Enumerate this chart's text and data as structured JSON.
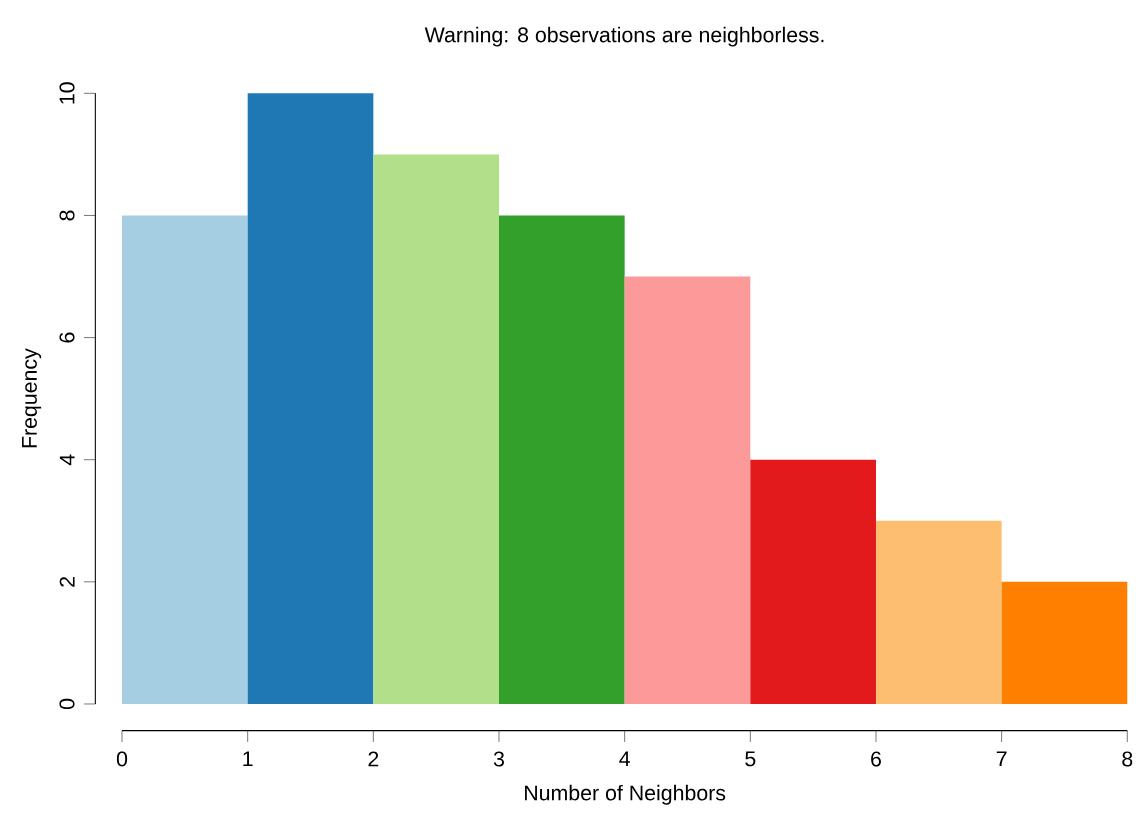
{
  "chart_data": {
    "type": "histogram",
    "title": "Warning: 8 observations are neighborless.",
    "xlabel": "Number of Neighbors",
    "ylabel": "Frequency",
    "bins": [
      0,
      1,
      2,
      3,
      4,
      5,
      6,
      7,
      8
    ],
    "values": [
      8,
      10,
      9,
      8,
      7,
      4,
      3,
      2
    ],
    "colors": [
      "#a6cee3",
      "#1f78b4",
      "#b2df8a",
      "#33a02c",
      "#fb9a99",
      "#e31a1c",
      "#fdbf6f",
      "#ff7f00"
    ],
    "xlim": [
      0,
      8
    ],
    "ylim": [
      0,
      10
    ],
    "xticks": [
      0,
      1,
      2,
      3,
      4,
      5,
      6,
      7,
      8
    ],
    "yticks": [
      0,
      2,
      4,
      6,
      8,
      10
    ]
  }
}
